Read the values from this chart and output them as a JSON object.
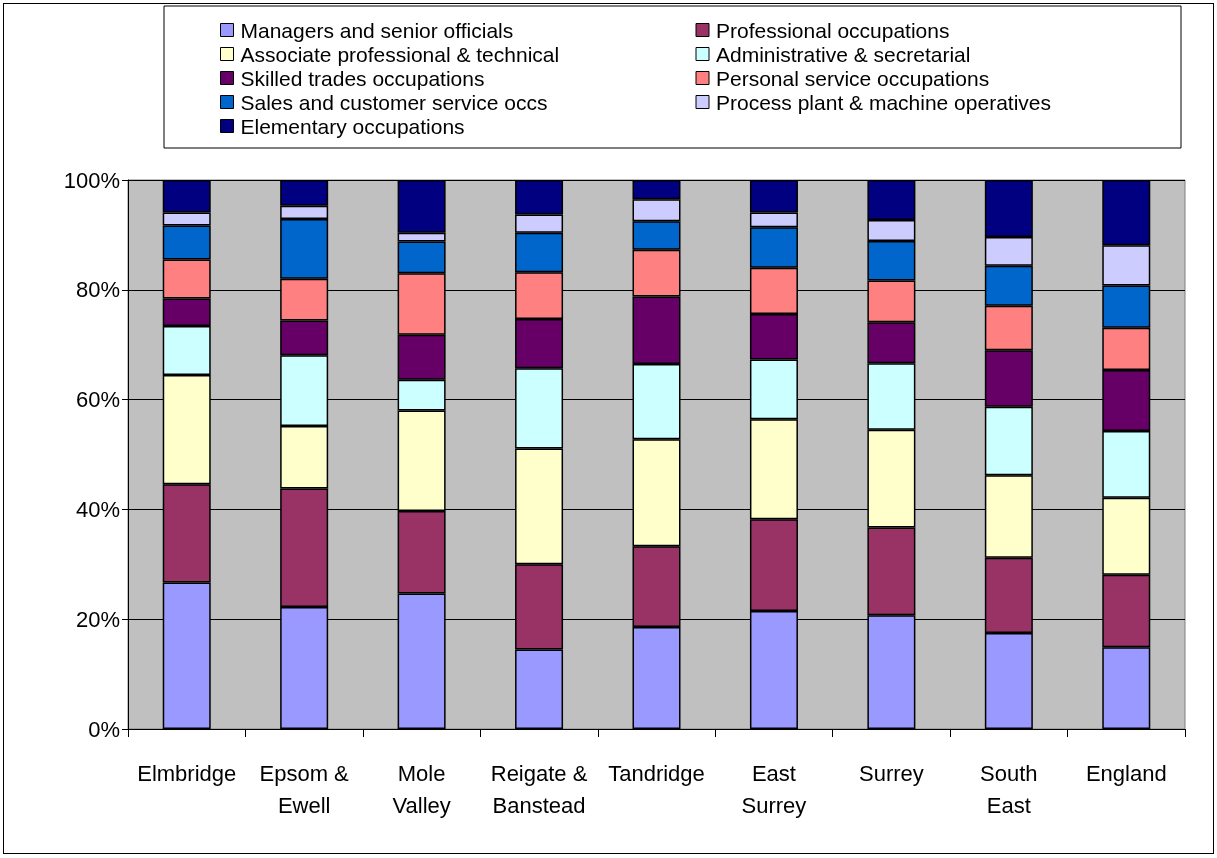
{
  "chart_data": {
    "type": "bar",
    "stacked": true,
    "grid": "y",
    "legend": "top",
    "categories": [
      "Elmbridge",
      "Epsom &\nEwell",
      "Mole\nValley",
      "Reigate &\nBanstead",
      "Tandridge",
      "East\nSurrey",
      "Surrey",
      "South\nEast",
      "England"
    ],
    "ylim": [
      0,
      100
    ],
    "yticks": [
      {
        "value": 0,
        "label": "0%"
      },
      {
        "value": 20,
        "label": "20%"
      },
      {
        "value": 40,
        "label": "40%"
      },
      {
        "value": 60,
        "label": "60%"
      },
      {
        "value": 80,
        "label": "80%"
      },
      {
        "value": 100,
        "label": "100%"
      }
    ],
    "series": [
      {
        "name": "Managers and senior officials",
        "color": "#9999ff",
        "values": [
          26.7,
          22.2,
          24.7,
          14.5,
          18.6,
          21.5,
          20.7,
          17.5,
          14.9
        ]
      },
      {
        "name": "Professional occupations",
        "color": "#993366",
        "values": [
          17.9,
          21.6,
          15.0,
          15.5,
          14.7,
          16.7,
          16.0,
          13.7,
          13.2
        ]
      },
      {
        "name": "Associate professional & technical",
        "color": "#ffffcc",
        "values": [
          19.9,
          11.4,
          18.3,
          21.1,
          19.5,
          18.2,
          17.8,
          15.0,
          14.0
        ]
      },
      {
        "name": "Administrative & secretarial",
        "color": "#ccffff",
        "values": [
          8.9,
          12.9,
          5.6,
          14.6,
          13.7,
          10.9,
          12.1,
          12.5,
          12.2
        ]
      },
      {
        "name": "Skilled trades occupations",
        "color": "#660066",
        "values": [
          5.0,
          6.3,
          8.2,
          9.0,
          12.3,
          8.3,
          7.5,
          10.3,
          11.1
        ]
      },
      {
        "name": "Personal service occupations",
        "color": "#ff8080",
        "values": [
          7.1,
          7.6,
          11.2,
          8.5,
          8.5,
          8.4,
          7.6,
          8.1,
          7.7
        ]
      },
      {
        "name": "Sales and customer service occs",
        "color": "#0066cc",
        "values": [
          6.2,
          10.9,
          5.8,
          7.2,
          5.2,
          7.4,
          7.2,
          7.3,
          7.7
        ]
      },
      {
        "name": "Process plant & machine operatives",
        "color": "#ccccff",
        "values": [
          2.4,
          2.4,
          1.6,
          3.3,
          4.0,
          2.7,
          3.8,
          5.2,
          7.3
        ]
      },
      {
        "name": "Elementary occupations",
        "color": "#000080",
        "values": [
          5.9,
          4.7,
          9.6,
          6.3,
          3.5,
          5.9,
          7.3,
          10.4,
          11.9
        ]
      }
    ]
  }
}
